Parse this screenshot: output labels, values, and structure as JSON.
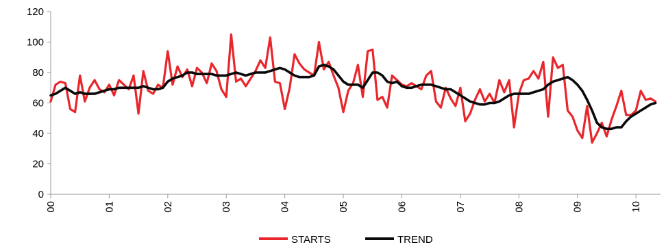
{
  "chart_data": {
    "type": "line",
    "title": "",
    "xlabel": "",
    "ylabel": "",
    "ylim": [
      0,
      120
    ],
    "xlim": [
      2000,
      2010.42
    ],
    "grid": false,
    "legend_position": "bottom",
    "y_ticks": [
      "0",
      "20",
      "40",
      "60",
      "80",
      "100",
      "120"
    ],
    "x_ticks": [
      "00",
      "01",
      "02",
      "03",
      "04",
      "05",
      "06",
      "07",
      "08",
      "09",
      "10"
    ],
    "x_start_year": 2000,
    "series": [
      {
        "name": "STARTS",
        "color": "#e8262b",
        "values": [
          61,
          72,
          74,
          73,
          56,
          54,
          78,
          61,
          70,
          75,
          69,
          67,
          72,
          65,
          75,
          72,
          69,
          78,
          53,
          81,
          68,
          66,
          72,
          70,
          94,
          72,
          84,
          77,
          82,
          71,
          83,
          80,
          73,
          86,
          81,
          69,
          64,
          105,
          74,
          76,
          71,
          76,
          81,
          88,
          83,
          103,
          74,
          73,
          56,
          70,
          92,
          86,
          82,
          80,
          78,
          100,
          82,
          87,
          78,
          70,
          54,
          68,
          73,
          85,
          64,
          94,
          95,
          62,
          64,
          57,
          78,
          75,
          72,
          71,
          73,
          71,
          69,
          78,
          81,
          61,
          57,
          70,
          63,
          58,
          70,
          48,
          53,
          62,
          69,
          61,
          66,
          60,
          75,
          67,
          75,
          44,
          66,
          75,
          76,
          81,
          76,
          87,
          51,
          90,
          83,
          85,
          55,
          51,
          42,
          37,
          58,
          34,
          40,
          47,
          38,
          49,
          58,
          68,
          52,
          52,
          55,
          68,
          62,
          63,
          61
        ]
      },
      {
        "name": "TREND",
        "color": "#0a0a0a",
        "values": [
          65,
          66,
          68,
          70,
          68,
          66,
          67,
          66,
          66,
          66,
          67,
          68,
          69,
          69,
          70,
          70,
          70,
          70,
          70,
          71,
          70,
          69,
          69,
          70,
          74,
          76,
          77,
          78,
          80,
          80,
          79,
          79,
          79,
          79,
          78,
          78,
          78,
          79,
          80,
          79,
          78,
          79,
          80,
          80,
          80,
          81,
          82,
          83,
          82,
          80,
          78,
          77,
          77,
          77,
          78,
          84,
          85,
          84,
          82,
          78,
          74,
          72,
          72,
          72,
          70,
          75,
          80,
          80,
          78,
          74,
          73,
          74,
          71,
          70,
          70,
          71,
          72,
          72,
          72,
          71,
          70,
          69,
          69,
          67,
          65,
          63,
          61,
          60,
          59,
          59,
          60,
          60,
          61,
          63,
          65,
          66,
          66,
          66,
          66,
          67,
          68,
          69,
          72,
          74,
          75,
          76,
          77,
          75,
          72,
          68,
          62,
          55,
          47,
          44,
          43,
          43,
          44,
          44,
          48,
          51,
          53,
          55,
          57,
          59,
          60
        ]
      }
    ]
  }
}
